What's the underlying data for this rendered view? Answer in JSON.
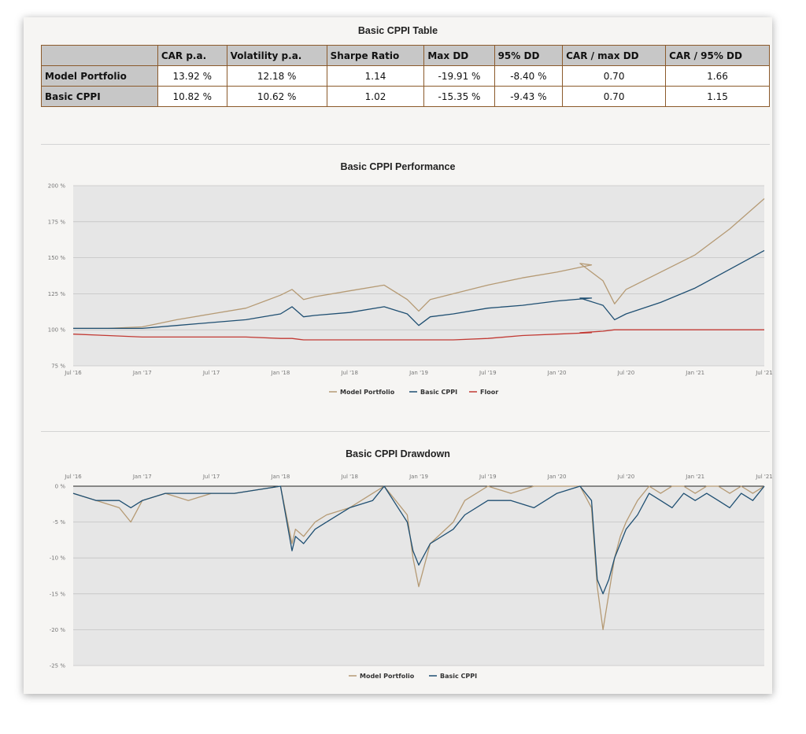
{
  "table": {
    "title": "Basic CPPI Table",
    "headers": [
      "",
      "CAR p.a.",
      "Volatility p.a.",
      "Sharpe Ratio",
      "Max DD",
      "95% DD",
      "CAR / max DD",
      "CAR / 95% DD"
    ],
    "rows": [
      [
        "Model Portfolio",
        "13.92 %",
        "12.18 %",
        "1.14",
        "-19.91 %",
        "-8.40 %",
        "0.70",
        "1.66"
      ],
      [
        "Basic CPPI",
        "10.82 %",
        "10.62 %",
        "1.02",
        "-15.35 %",
        "-9.43 %",
        "0.70",
        "1.15"
      ]
    ]
  },
  "colors": {
    "model": "#b59a74",
    "cppi": "#1f4f72",
    "floor": "#c23a34",
    "border": "#8b5a2b"
  },
  "chart_data": [
    {
      "type": "line",
      "title": "Basic CPPI Performance",
      "x_tick_labels": [
        "Jul '16",
        "Jan '17",
        "Jul '17",
        "Jan '18",
        "Jul '18",
        "Jan '19",
        "Jul '19",
        "Jan '20",
        "Jul '20",
        "Jan '21",
        "Jul '21"
      ],
      "y_tick_labels": [
        "75 %",
        "100 %",
        "125 %",
        "150 %",
        "175 %",
        "200 %"
      ],
      "ylim": [
        75,
        200
      ],
      "y_ticks": [
        75,
        100,
        125,
        150,
        175,
        200
      ],
      "x": [
        0,
        3,
        6,
        9,
        12,
        15,
        18,
        19,
        20,
        21,
        24,
        27,
        29,
        30,
        31,
        33,
        36,
        39,
        42,
        45,
        44,
        46,
        47,
        48,
        51,
        54,
        57,
        60
      ],
      "series": [
        {
          "name": "Model Portfolio",
          "values": [
            101,
            101,
            102,
            107,
            111,
            115,
            124,
            128,
            121,
            123,
            127,
            131,
            121,
            113,
            121,
            125,
            131,
            136,
            140,
            145,
            146,
            134,
            118,
            128,
            140,
            152,
            170,
            191
          ]
        },
        {
          "name": "Basic CPPI",
          "values": [
            101,
            101,
            101,
            103,
            105,
            107,
            111,
            116,
            109,
            110,
            112,
            116,
            111,
            103,
            109,
            111,
            115,
            117,
            120,
            122,
            122,
            117,
            107,
            111,
            119,
            129,
            142,
            155
          ]
        },
        {
          "name": "Floor",
          "values": [
            97,
            96,
            95,
            95,
            95,
            95,
            94,
            94,
            93,
            93,
            93,
            93,
            93,
            93,
            93,
            93,
            94,
            96,
            97,
            98,
            98,
            99,
            100,
            100,
            100,
            100,
            100,
            100
          ]
        }
      ],
      "legend": [
        "Model Portfolio",
        "Basic CPPI",
        "Floor"
      ],
      "legend_position": "bottom",
      "grid": true
    },
    {
      "type": "line",
      "title": "Basic CPPI Drawdown",
      "x_tick_labels": [
        "Jul '16",
        "Jan '17",
        "Jul '17",
        "Jan '18",
        "Jul '18",
        "Jan '19",
        "Jul '19",
        "Jan '20",
        "Jul '20",
        "Jan '21",
        "Jul '21"
      ],
      "y_tick_labels": [
        "0 %",
        "-5 %",
        "-10 %",
        "-15 %",
        "-20 %",
        "-25 %"
      ],
      "ylim": [
        -25,
        0
      ],
      "y_ticks": [
        0,
        -5,
        -10,
        -15,
        -20,
        -25
      ],
      "x": [
        0,
        2,
        4,
        5,
        6,
        8,
        10,
        12,
        14,
        18,
        19,
        19.3,
        20,
        21,
        22,
        24,
        26,
        27,
        29,
        29.5,
        30,
        31,
        33,
        34,
        36,
        38,
        40,
        42,
        44,
        45,
        45.5,
        46,
        46.5,
        47,
        47.5,
        48,
        49,
        50,
        51,
        52,
        53,
        54,
        55,
        56,
        57,
        58,
        59,
        60
      ],
      "series": [
        {
          "name": "Model Portfolio",
          "values": [
            -1,
            -2,
            -3,
            -5,
            -2,
            -1,
            -2,
            -1,
            -1,
            0,
            -8,
            -6,
            -7,
            -5,
            -4,
            -3,
            -1,
            0,
            -4,
            -10,
            -14,
            -8,
            -5,
            -2,
            0,
            -1,
            0,
            0,
            0,
            -3,
            -14,
            -20,
            -15,
            -10,
            -7,
            -5,
            -2,
            0,
            -1,
            0,
            0,
            -1,
            0,
            0,
            -1,
            0,
            -1,
            0
          ]
        },
        {
          "name": "Basic CPPI",
          "values": [
            -1,
            -2,
            -2,
            -3,
            -2,
            -1,
            -1,
            -1,
            -1,
            0,
            -9,
            -7,
            -8,
            -6,
            -5,
            -3,
            -2,
            0,
            -5,
            -9,
            -11,
            -8,
            -6,
            -4,
            -2,
            -2,
            -3,
            -1,
            0,
            -2,
            -13,
            -15,
            -13,
            -10,
            -8,
            -6,
            -4,
            -1,
            -2,
            -3,
            -1,
            -2,
            -1,
            -2,
            -3,
            -1,
            -2,
            0
          ]
        }
      ],
      "legend": [
        "Model Portfolio",
        "Basic CPPI"
      ],
      "legend_position": "bottom",
      "grid": true
    }
  ]
}
